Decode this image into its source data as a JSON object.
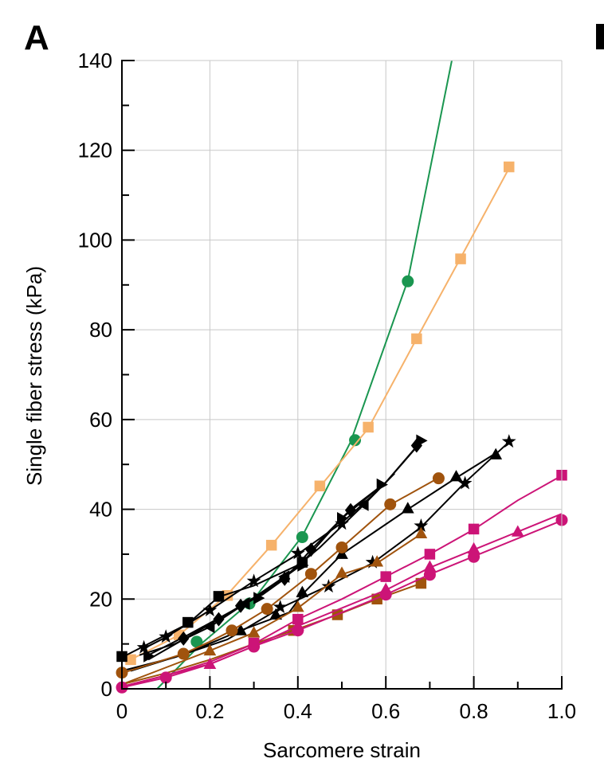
{
  "panel_label": "A",
  "chart_data": {
    "type": "line",
    "title": "",
    "xlabel": "Sarcomere strain",
    "ylabel": "Single fiber stress (kPa)",
    "xlim": [
      0,
      1.0
    ],
    "ylim": [
      0,
      140
    ],
    "xticks": [
      "0",
      "0.2",
      "0.4",
      "0.6",
      "0.8",
      "1.0"
    ],
    "yticks": [
      "0",
      "20",
      "40",
      "60",
      "80",
      "100",
      "120",
      "140"
    ],
    "grid": true,
    "legend": "none",
    "series": [
      {
        "color": "#1a9650",
        "marker": "circle",
        "line": [
          [
            0.08,
            0
          ],
          [
            0.18,
            10
          ],
          [
            0.3,
            20
          ],
          [
            0.41,
            34
          ],
          [
            0.52,
            55
          ],
          [
            0.65,
            91
          ],
          [
            0.75,
            140
          ]
        ],
        "points": [
          [
            0.17,
            10.5
          ],
          [
            0.29,
            19
          ],
          [
            0.41,
            33.8
          ],
          [
            0.53,
            55.4
          ],
          [
            0.65,
            90.8
          ]
        ]
      },
      {
        "color": "#f6b26b",
        "marker": "square",
        "line": [
          [
            0.02,
            6.5
          ],
          [
            0.13,
            12
          ],
          [
            0.24,
            21
          ],
          [
            0.34,
            32
          ],
          [
            0.45,
            45
          ],
          [
            0.56,
            58
          ],
          [
            0.67,
            78
          ],
          [
            0.77,
            96
          ],
          [
            0.88,
            116
          ]
        ],
        "points": [
          [
            0.02,
            6.5
          ],
          [
            0.13,
            12
          ],
          [
            0.24,
            20.8
          ],
          [
            0.34,
            32
          ],
          [
            0.45,
            45.2
          ],
          [
            0.56,
            58.3
          ],
          [
            0.67,
            78
          ],
          [
            0.77,
            95.8
          ],
          [
            0.88,
            116.3
          ]
        ]
      },
      {
        "color": "#000000",
        "marker": "square",
        "line": [
          [
            0.0,
            7
          ],
          [
            0.15,
            14.5
          ],
          [
            0.22,
            20.5
          ],
          [
            0.3,
            23
          ],
          [
            0.41,
            28
          ]
        ],
        "points": [
          [
            0.0,
            7.2
          ],
          [
            0.15,
            14.8
          ],
          [
            0.22,
            20.6
          ],
          [
            0.41,
            28.2
          ]
        ]
      },
      {
        "color": "#000000",
        "marker": "star",
        "line": [
          [
            0.05,
            9
          ],
          [
            0.1,
            11.5
          ],
          [
            0.2,
            17.5
          ],
          [
            0.3,
            24
          ],
          [
            0.4,
            30
          ],
          [
            0.5,
            37
          ],
          [
            0.58,
            44
          ]
        ],
        "points": [
          [
            0.05,
            9.2
          ],
          [
            0.1,
            11.6
          ],
          [
            0.2,
            17.5
          ],
          [
            0.3,
            24
          ],
          [
            0.4,
            30.2
          ],
          [
            0.5,
            36.8
          ]
        ]
      },
      {
        "color": "#000000",
        "marker": "triangle-right",
        "line": [
          [
            0.05,
            7
          ],
          [
            0.15,
            12
          ],
          [
            0.3,
            20
          ],
          [
            0.4,
            27
          ],
          [
            0.5,
            38
          ],
          [
            0.6,
            46
          ],
          [
            0.68,
            55
          ]
        ],
        "points": [
          [
            0.06,
            7.3
          ],
          [
            0.31,
            20.2
          ],
          [
            0.41,
            27.5
          ],
          [
            0.5,
            38
          ],
          [
            0.59,
            45.5
          ],
          [
            0.68,
            55.3
          ]
        ]
      },
      {
        "color": "#000000",
        "marker": "diamond",
        "line": [
          [
            0.06,
            6.5
          ],
          [
            0.14,
            11
          ],
          [
            0.22,
            15.5
          ],
          [
            0.27,
            18.5
          ],
          [
            0.32,
            21
          ],
          [
            0.37,
            24.5
          ],
          [
            0.43,
            31
          ],
          [
            0.52,
            40
          ],
          [
            0.6,
            46
          ],
          [
            0.67,
            54
          ]
        ],
        "points": [
          [
            0.14,
            11.2
          ],
          [
            0.22,
            15.5
          ],
          [
            0.27,
            18.5
          ],
          [
            0.37,
            24.5
          ],
          [
            0.43,
            31
          ],
          [
            0.52,
            39.8
          ],
          [
            0.67,
            54.2
          ]
        ]
      },
      {
        "color": "#000000",
        "marker": "triangle-left",
        "line": [
          [
            0.04,
            7.5
          ],
          [
            0.12,
            10
          ],
          [
            0.2,
            13.8
          ],
          [
            0.28,
            19
          ],
          [
            0.37,
            25
          ],
          [
            0.45,
            31.5
          ],
          [
            0.55,
            41
          ],
          [
            0.62,
            48
          ]
        ],
        "points": [
          [
            0.2,
            13.8
          ],
          [
            0.28,
            19
          ],
          [
            0.37,
            25
          ],
          [
            0.55,
            41
          ]
        ]
      },
      {
        "color": "#000000",
        "marker": "star",
        "line": [
          [
            0.0,
            4
          ],
          [
            0.12,
            7
          ],
          [
            0.24,
            11
          ],
          [
            0.36,
            18
          ],
          [
            0.47,
            23
          ],
          [
            0.57,
            28
          ],
          [
            0.68,
            36
          ],
          [
            0.78,
            46
          ],
          [
            0.88,
            55
          ]
        ],
        "points": [
          [
            0.36,
            18.2
          ],
          [
            0.47,
            22.8
          ],
          [
            0.57,
            28.2
          ],
          [
            0.68,
            36.3
          ],
          [
            0.78,
            45.8
          ],
          [
            0.88,
            55.1
          ]
        ]
      },
      {
        "color": "#000000",
        "marker": "triangle",
        "line": [
          [
            0.02,
            4
          ],
          [
            0.15,
            8
          ],
          [
            0.27,
            13
          ],
          [
            0.38,
            17
          ],
          [
            0.41,
            21
          ],
          [
            0.5,
            30
          ],
          [
            0.65,
            40
          ],
          [
            0.76,
            47
          ],
          [
            0.85,
            52.5
          ]
        ],
        "points": [
          [
            0.27,
            13
          ],
          [
            0.35,
            16.5
          ],
          [
            0.41,
            21.5
          ],
          [
            0.5,
            30
          ],
          [
            0.65,
            40.2
          ],
          [
            0.76,
            47.3
          ],
          [
            0.85,
            52.2
          ]
        ]
      },
      {
        "color": "#a0530d",
        "marker": "circle",
        "line": [
          [
            0.0,
            3.5
          ],
          [
            0.14,
            7.8
          ],
          [
            0.2,
            10.5
          ],
          [
            0.25,
            13
          ],
          [
            0.33,
            17.8
          ],
          [
            0.43,
            25.5
          ],
          [
            0.5,
            31.5
          ],
          [
            0.61,
            41
          ],
          [
            0.72,
            47
          ]
        ],
        "points": [
          [
            0.0,
            3.6
          ],
          [
            0.14,
            7.8
          ],
          [
            0.25,
            13
          ],
          [
            0.33,
            17.8
          ],
          [
            0.43,
            25.6
          ],
          [
            0.5,
            31.5
          ],
          [
            0.61,
            41.1
          ],
          [
            0.72,
            46.9
          ]
        ]
      },
      {
        "color": "#a0530d",
        "marker": "triangle",
        "line": [
          [
            0.0,
            1
          ],
          [
            0.08,
            4
          ],
          [
            0.2,
            8.5
          ],
          [
            0.3,
            12.5
          ],
          [
            0.4,
            18
          ],
          [
            0.5,
            25.5
          ],
          [
            0.58,
            28
          ],
          [
            0.68,
            34.5
          ]
        ],
        "points": [
          [
            0.2,
            8.5
          ],
          [
            0.3,
            12.5
          ],
          [
            0.4,
            18.2
          ],
          [
            0.5,
            25.8
          ],
          [
            0.58,
            28.3
          ],
          [
            0.68,
            34.6
          ]
        ]
      },
      {
        "color": "#a0530d",
        "marker": "square",
        "line": [
          [
            0.0,
            1
          ],
          [
            0.1,
            3.5
          ],
          [
            0.2,
            6.5
          ],
          [
            0.3,
            10
          ],
          [
            0.39,
            13
          ],
          [
            0.49,
            16.5
          ],
          [
            0.58,
            20
          ],
          [
            0.68,
            23.5
          ]
        ],
        "points": [
          [
            0.3,
            10
          ],
          [
            0.39,
            13
          ],
          [
            0.49,
            16.5
          ],
          [
            0.58,
            20
          ],
          [
            0.68,
            23.5
          ]
        ]
      },
      {
        "color": "#cc1477",
        "marker": "square",
        "line": [
          [
            0.0,
            0.5
          ],
          [
            0.1,
            3
          ],
          [
            0.2,
            6
          ],
          [
            0.3,
            10
          ],
          [
            0.4,
            15.5
          ],
          [
            0.5,
            20
          ],
          [
            0.6,
            25
          ],
          [
            0.7,
            30
          ],
          [
            0.8,
            35.5
          ],
          [
            0.9,
            42
          ],
          [
            1.0,
            47.5
          ]
        ],
        "points": [
          [
            0.3,
            10.2
          ],
          [
            0.4,
            15.5
          ],
          [
            0.6,
            25
          ],
          [
            0.7,
            30
          ],
          [
            0.8,
            35.6
          ],
          [
            1.0,
            47.6
          ]
        ]
      },
      {
        "color": "#cc1477",
        "marker": "triangle",
        "line": [
          [
            0.0,
            0.5
          ],
          [
            0.1,
            3
          ],
          [
            0.2,
            5.5
          ],
          [
            0.3,
            9.5
          ],
          [
            0.4,
            14
          ],
          [
            0.5,
            18
          ],
          [
            0.6,
            22
          ],
          [
            0.7,
            27
          ],
          [
            0.8,
            31
          ],
          [
            0.9,
            35
          ],
          [
            1.0,
            39
          ]
        ],
        "points": [
          [
            0.2,
            5.5
          ],
          [
            0.4,
            14
          ],
          [
            0.6,
            22.2
          ],
          [
            0.7,
            27.2
          ],
          [
            0.8,
            31.2
          ],
          [
            0.9,
            35
          ]
        ]
      },
      {
        "color": "#cc1477",
        "marker": "circle",
        "line": [
          [
            0.0,
            0.3
          ],
          [
            0.1,
            2.5
          ],
          [
            0.2,
            5.5
          ],
          [
            0.3,
            9.5
          ],
          [
            0.4,
            13
          ],
          [
            0.5,
            17
          ],
          [
            0.6,
            21
          ],
          [
            0.7,
            25.5
          ],
          [
            0.8,
            29.5
          ],
          [
            0.9,
            33.5
          ],
          [
            1.0,
            37.5
          ]
        ],
        "points": [
          [
            0.0,
            0.3
          ],
          [
            0.1,
            2.5
          ],
          [
            0.3,
            9.4
          ],
          [
            0.4,
            13
          ],
          [
            0.6,
            21
          ],
          [
            0.7,
            25.4
          ],
          [
            0.8,
            29.4
          ],
          [
            1.0,
            37.6
          ]
        ]
      }
    ]
  }
}
